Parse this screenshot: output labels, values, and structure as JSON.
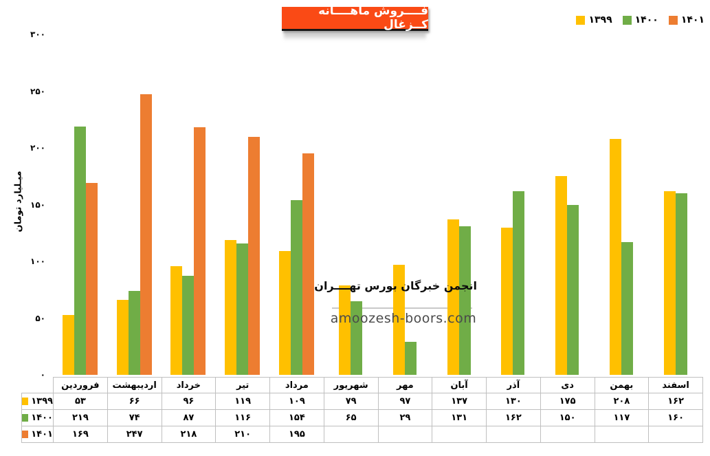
{
  "header": {
    "title": "فــــروش ماهــــانه کــزغال",
    "title_bg": "#FA4A15",
    "title_text_color": "#FFFFFF"
  },
  "legend": {
    "items": [
      {
        "label": "۱۳۹۹",
        "color": "#FFC000"
      },
      {
        "label": "۱۴۰۰",
        "color": "#70AD47"
      },
      {
        "label": "۱۴۰۱",
        "color": "#ED7D31"
      }
    ]
  },
  "watermark": {
    "line1": "انجمن خبرگان بورس تهــــران",
    "line2": "amoozesh-boors.com"
  },
  "chart_data": {
    "type": "bar",
    "title": "فــــروش ماهــــانه کــزغال",
    "xlabel": "",
    "ylabel": "میـلیارد تومان",
    "ylim": [
      0,
      300
    ],
    "grid": false,
    "legend_position": "top-right",
    "categories": [
      "فروردین",
      "اردیبهشت",
      "خرداد",
      "تیر",
      "مرداد",
      "شهریور",
      "مهر",
      "آبان",
      "آذر",
      "دی",
      "بهمن",
      "اسفند"
    ],
    "series": [
      {
        "id": "1399",
        "name": "۱۳۹۹",
        "color": "#FFC000",
        "values": [
          53,
          66,
          96,
          119,
          109,
          79,
          97,
          137,
          130,
          175,
          208,
          162
        ]
      },
      {
        "id": "1400",
        "name": "۱۴۰۰",
        "color": "#70AD47",
        "values": [
          219,
          74,
          87,
          116,
          154,
          65,
          29,
          131,
          162,
          150,
          117,
          160
        ]
      },
      {
        "id": "1401",
        "name": "۱۴۰۱",
        "color": "#ED7D31",
        "values": [
          169,
          247,
          218,
          210,
          195,
          null,
          null,
          null,
          null,
          null,
          null,
          null
        ]
      }
    ],
    "y_ticks": [
      {
        "value": 0,
        "label": "۰"
      },
      {
        "value": 50,
        "label": "۵۰"
      },
      {
        "value": 100,
        "label": "۱۰۰"
      },
      {
        "value": 150,
        "label": "۱۵۰"
      },
      {
        "value": 200,
        "label": "۲۰۰"
      },
      {
        "value": 250,
        "label": "۲۵۰"
      },
      {
        "value": 300,
        "label": "۳۰۰"
      }
    ]
  },
  "table": {
    "columns": [
      "فروردین",
      "اردیبهشت",
      "خرداد",
      "تیر",
      "مرداد",
      "شهریور",
      "مهر",
      "آبان",
      "آذر",
      "دی",
      "بهمن",
      "اسفند"
    ],
    "rows": [
      {
        "id": "1399",
        "label": "۱۳۹۹",
        "color": "#FFC000",
        "values": [
          "۵۳",
          "۶۶",
          "۹۶",
          "۱۱۹",
          "۱۰۹",
          "۷۹",
          "۹۷",
          "۱۳۷",
          "۱۳۰",
          "۱۷۵",
          "۲۰۸",
          "۱۶۲"
        ]
      },
      {
        "id": "1400",
        "label": "۱۴۰۰",
        "color": "#70AD47",
        "values": [
          "۲۱۹",
          "۷۴",
          "۸۷",
          "۱۱۶",
          "۱۵۴",
          "۶۵",
          "۲۹",
          "۱۳۱",
          "۱۶۲",
          "۱۵۰",
          "۱۱۷",
          "۱۶۰"
        ]
      },
      {
        "id": "1401",
        "label": "۱۴۰۱",
        "color": "#ED7D31",
        "values": [
          "۱۶۹",
          "۲۴۷",
          "۲۱۸",
          "۲۱۰",
          "۱۹۵",
          "",
          "",
          "",
          "",
          "",
          "",
          ""
        ]
      }
    ]
  }
}
